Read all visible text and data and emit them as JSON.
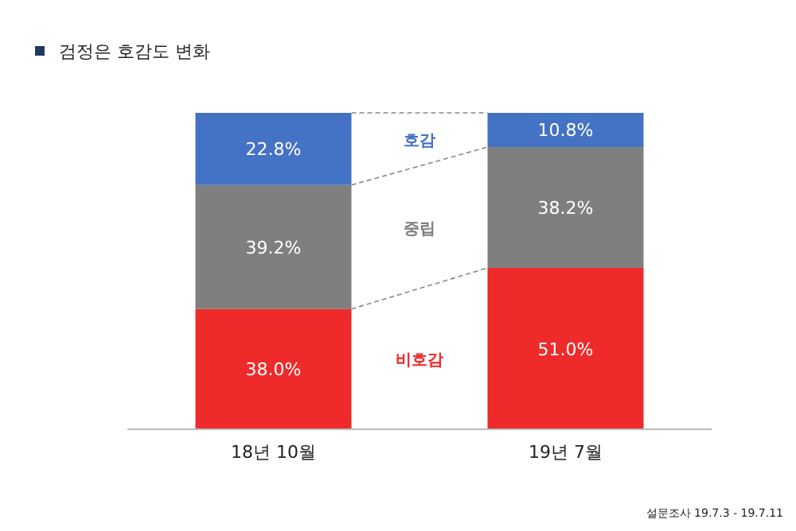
{
  "chart_data": {
    "type": "bar",
    "stacked": true,
    "title": "검정은 호감도 변화",
    "categories": [
      "18년 10월",
      "19년 7월"
    ],
    "series": [
      {
        "name": "비호감",
        "color": "#ee2a2a",
        "values": [
          38.0,
          51.0
        ],
        "value_labels": [
          "38.0%",
          "51.0%"
        ]
      },
      {
        "name": "중립",
        "color": "#7f7f7f",
        "values": [
          39.2,
          38.2
        ],
        "value_labels": [
          "39.2%",
          "38.2%"
        ]
      },
      {
        "name": "호감",
        "color": "#4472c4",
        "values": [
          22.8,
          10.8
        ],
        "value_labels": [
          "22.8%",
          "10.8%"
        ]
      }
    ],
    "annotations": [
      "설문조사 19.7.3 - 19.7.11"
    ]
  }
}
